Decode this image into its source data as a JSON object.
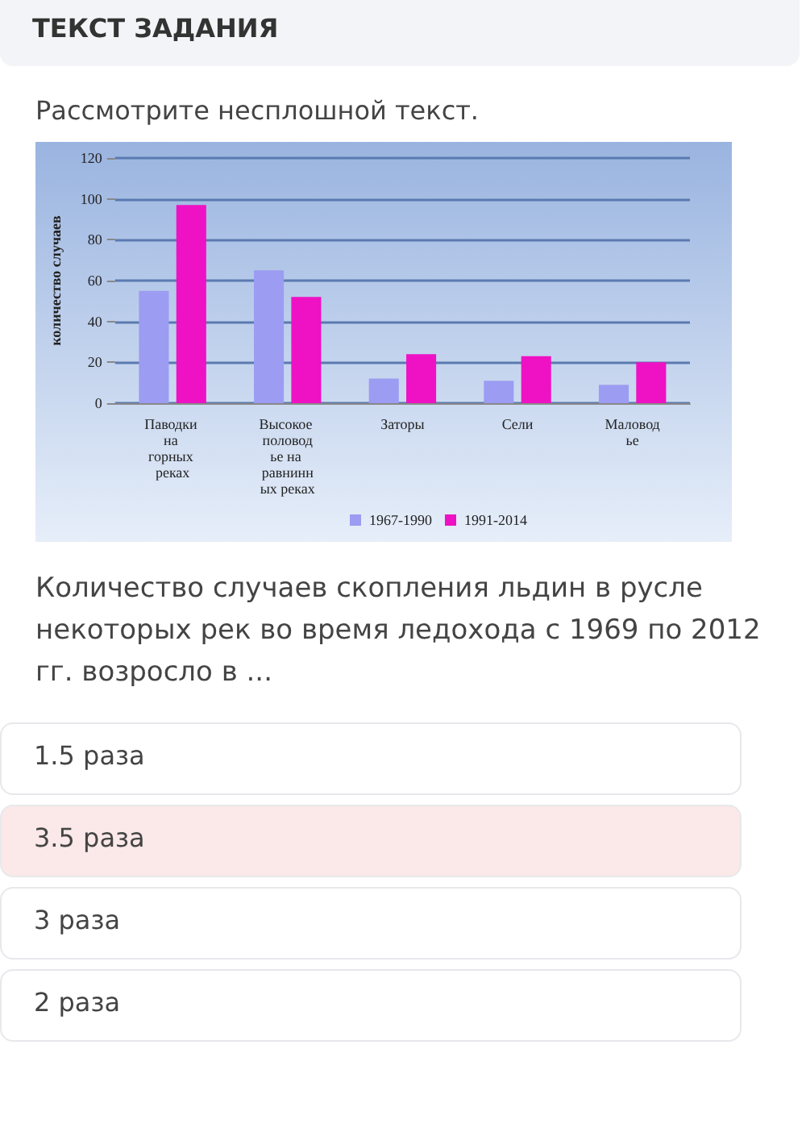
{
  "chart_data": {
    "type": "bar",
    "title": "ТЕКСТ ЗАДАНИЯ",
    "subtitle": "Рассмотрите несплошной текст.",
    "ylabel": "количество случаев",
    "categories": [
      "Паводки на горных реках",
      "Высокое половодье на равнинных реках",
      "Заторы",
      "Сели",
      "Маловодье"
    ],
    "series": [
      {
        "name": "1967-1990",
        "color": "#9c9cf2",
        "values": [
          55,
          65,
          12,
          11,
          9
        ]
      },
      {
        "name": "1991-2014",
        "color": "#ee12c4",
        "values": [
          97,
          52,
          24,
          23,
          20
        ]
      }
    ],
    "ylim": [
      0,
      120
    ],
    "yticks": [
      0,
      20,
      40,
      60,
      80,
      100,
      120
    ],
    "grid": "y",
    "legend": "bottom",
    "annotations": [
      "Количество случаев скопления льдин в русле некоторых рек во время ледохода с 1969 по 2012 гг. возросло в ...",
      "1.5 раза",
      "3.5 раза",
      "3 раза",
      "2 раза"
    ]
  }
}
